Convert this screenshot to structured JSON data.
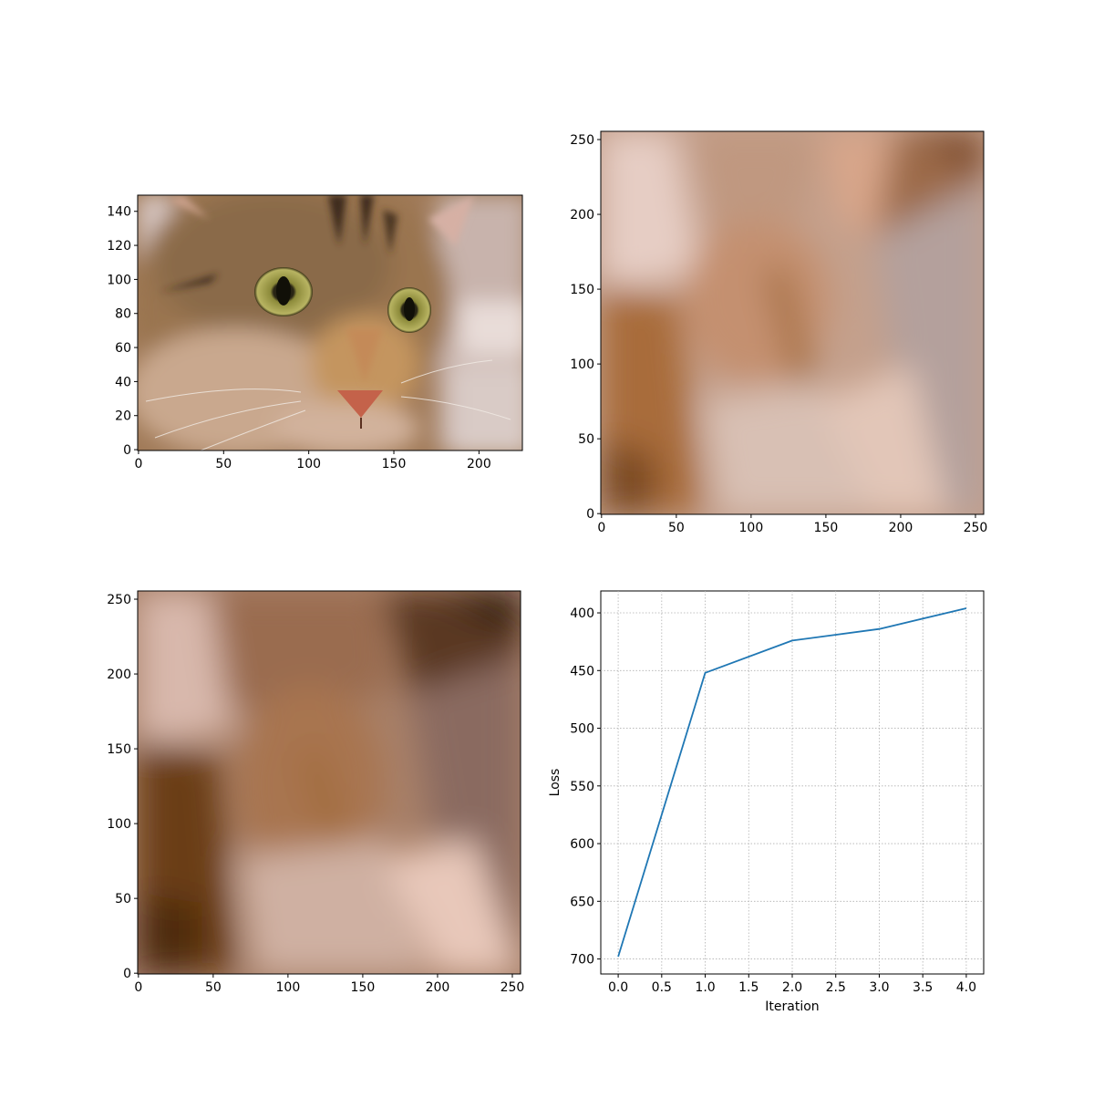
{
  "chart_data": [
    {
      "type": "image",
      "x_ticks": [
        "0",
        "50",
        "100",
        "150",
        "200"
      ],
      "y_ticks": [
        "0",
        "20",
        "40",
        "60",
        "80",
        "100",
        "120",
        "140"
      ],
      "xlim": [
        -0.5,
        225.5
      ],
      "ylim": [
        149.5,
        -0.5
      ]
    },
    {
      "type": "image",
      "x_ticks": [
        "0",
        "50",
        "100",
        "150",
        "200",
        "250"
      ],
      "y_ticks": [
        "0",
        "50",
        "100",
        "150",
        "200",
        "250"
      ],
      "xlim": [
        -0.5,
        255.5
      ],
      "ylim": [
        255.5,
        -0.5
      ]
    },
    {
      "type": "image",
      "x_ticks": [
        "0",
        "50",
        "100",
        "150",
        "200",
        "250"
      ],
      "y_ticks": [
        "0",
        "50",
        "100",
        "150",
        "200",
        "250"
      ],
      "xlim": [
        -0.5,
        255.5
      ],
      "ylim": [
        255.5,
        -0.5
      ]
    },
    {
      "type": "line",
      "x": [
        0,
        1,
        2,
        3,
        4
      ],
      "series": [
        {
          "values": [
            698,
            452,
            424,
            414,
            396
          ],
          "color": "#1f77b4"
        }
      ],
      "xlabel": "Iteration",
      "ylabel": "Loss",
      "x_ticks": [
        "0.0",
        "0.5",
        "1.0",
        "1.5",
        "2.0",
        "2.5",
        "3.0",
        "3.5",
        "4.0"
      ],
      "y_ticks": [
        "400",
        "450",
        "500",
        "550",
        "600",
        "650",
        "700"
      ],
      "xlim": [
        -0.2,
        4.2
      ],
      "ylim": [
        381,
        713
      ],
      "grid": true
    }
  ]
}
